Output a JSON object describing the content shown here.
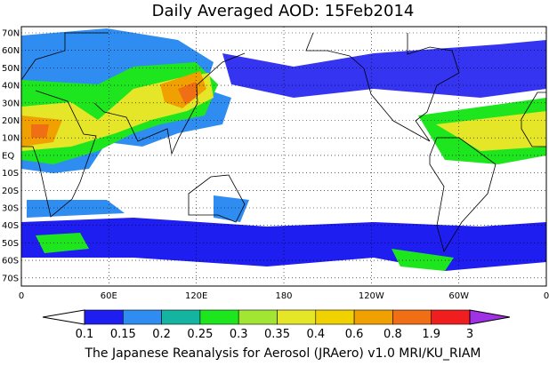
{
  "title": "Daily Averaged AOD: 15Feb2014",
  "map": {
    "lat_labels": [
      "70N",
      "60N",
      "50N",
      "40N",
      "30N",
      "20N",
      "10N",
      "EQ",
      "10S",
      "20S",
      "30S",
      "40S",
      "50S",
      "60S",
      "70S"
    ],
    "lon_labels": [
      "0",
      "60E",
      "120E",
      "180",
      "120W",
      "60W",
      "0"
    ]
  },
  "colorbar": {
    "labels": [
      "0.1",
      "0.15",
      "0.2",
      "0.25",
      "0.3",
      "0.35",
      "0.4",
      "0.6",
      "0.8",
      "1.9",
      "3"
    ],
    "under_color": "#ffffff",
    "colors": [
      "#1e1ef0",
      "#2f8cf0",
      "#14b4a0",
      "#1ee61e",
      "#a0e632",
      "#e6e628",
      "#f0d200",
      "#f0a000",
      "#f06e14",
      "#f01e1e"
    ],
    "over_color": "#a032e6"
  },
  "footer": "The Japanese Reanalysis for Aerosol (JRAero) v1.0 MRI/KU_RIAM"
}
